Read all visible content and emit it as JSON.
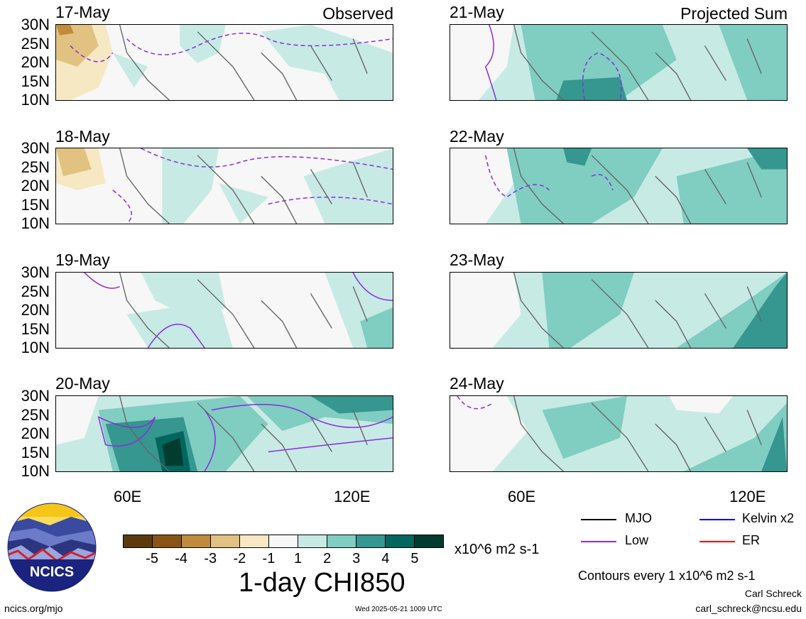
{
  "panels": [
    {
      "date": "17-May",
      "corner": "Observed"
    },
    {
      "date": "18-May",
      "corner": ""
    },
    {
      "date": "19-May",
      "corner": ""
    },
    {
      "date": "20-May",
      "corner": ""
    },
    {
      "date": "21-May",
      "corner": "Projected Sum"
    },
    {
      "date": "22-May",
      "corner": ""
    },
    {
      "date": "23-May",
      "corner": ""
    },
    {
      "date": "24-May",
      "corner": ""
    }
  ],
  "lat_labels": [
    "30N",
    "25N",
    "20N",
    "15N",
    "10N"
  ],
  "lon_labels": [
    "60E",
    "120E"
  ],
  "colorbar": {
    "labels": [
      "-5",
      "-4",
      "-3",
      "-2",
      "-1",
      "1",
      "2",
      "3",
      "4",
      "5"
    ],
    "colors": [
      "#5c3a0e",
      "#8a5417",
      "#c08b3d",
      "#e2c281",
      "#f6e8c3",
      "#f7f7f7",
      "#c7eae5",
      "#80cdc1",
      "#35978f",
      "#01665e",
      "#003c30"
    ],
    "units": "x10^6 m2 s-1",
    "title": "1-day CHI850"
  },
  "legend": {
    "mjo": "MJO",
    "kelvin": "Kelvin x2",
    "low": "Low",
    "er": "ER",
    "colors": {
      "mjo": "#000000",
      "kelvin": "#0000ff",
      "low": "#8a2be2",
      "er": "#ff0000"
    }
  },
  "contours_note": "Contours every 1 x10^6 m2 s-1",
  "author": "Carl Schreck",
  "email": "carl_schreck@ncsu.edu",
  "site": "ncics.org/mjo",
  "timestamp": "Wed 2025-05-21 1009 UTC",
  "logo_text": "NCICS"
}
